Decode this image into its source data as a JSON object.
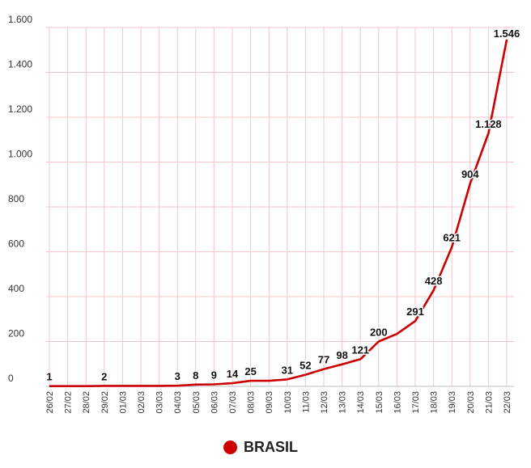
{
  "chart_data": {
    "type": "line",
    "title": "",
    "xlabel": "",
    "ylabel": "",
    "x": [
      "26/02",
      "27/02",
      "28/02",
      "29/02",
      "01/03",
      "02/03",
      "03/03",
      "04/03",
      "05/03",
      "06/03",
      "07/03",
      "08/03",
      "09/03",
      "10/03",
      "11/03",
      "12/03",
      "13/03",
      "14/03",
      "15/03",
      "16/03",
      "17/03",
      "18/03",
      "19/03",
      "20/03",
      "21/03",
      "22/03"
    ],
    "ylim": [
      0,
      1600
    ],
    "yticks": [
      0,
      200,
      400,
      600,
      800,
      1000,
      1200,
      1400,
      1600
    ],
    "ytick_labels": [
      "0",
      "200",
      "400",
      "600",
      "800",
      "1.000",
      "1.200",
      "1.400",
      "1.600"
    ],
    "series": [
      {
        "name": "BRASIL",
        "color": "#cc0000",
        "values": [
          1,
          1,
          1,
          2,
          2,
          2,
          2,
          3,
          8,
          9,
          14,
          25,
          25,
          31,
          52,
          77,
          98,
          121,
          200,
          234,
          291,
          428,
          621,
          904,
          1128,
          1546
        ]
      }
    ],
    "data_labels": [
      {
        "index": 0,
        "text": "1"
      },
      {
        "index": 3,
        "text": "2"
      },
      {
        "index": 7,
        "text": "3"
      },
      {
        "index": 8,
        "text": "8"
      },
      {
        "index": 9,
        "text": "9"
      },
      {
        "index": 10,
        "text": "14"
      },
      {
        "index": 11,
        "text": "25"
      },
      {
        "index": 13,
        "text": "31"
      },
      {
        "index": 14,
        "text": "52"
      },
      {
        "index": 15,
        "text": "77"
      },
      {
        "index": 16,
        "text": "98"
      },
      {
        "index": 17,
        "text": "121"
      },
      {
        "index": 18,
        "text": "200"
      },
      {
        "index": 20,
        "text": "291"
      },
      {
        "index": 21,
        "text": "428"
      },
      {
        "index": 22,
        "text": "621"
      },
      {
        "index": 23,
        "text": "904"
      },
      {
        "index": 24,
        "text": "1.128"
      },
      {
        "index": 25,
        "text": "1.546"
      }
    ],
    "grid": true,
    "grid_color": "#f5c6cb",
    "legend_position": "bottom-center"
  },
  "legend": {
    "label": "BRASIL",
    "color": "#cc0000"
  }
}
